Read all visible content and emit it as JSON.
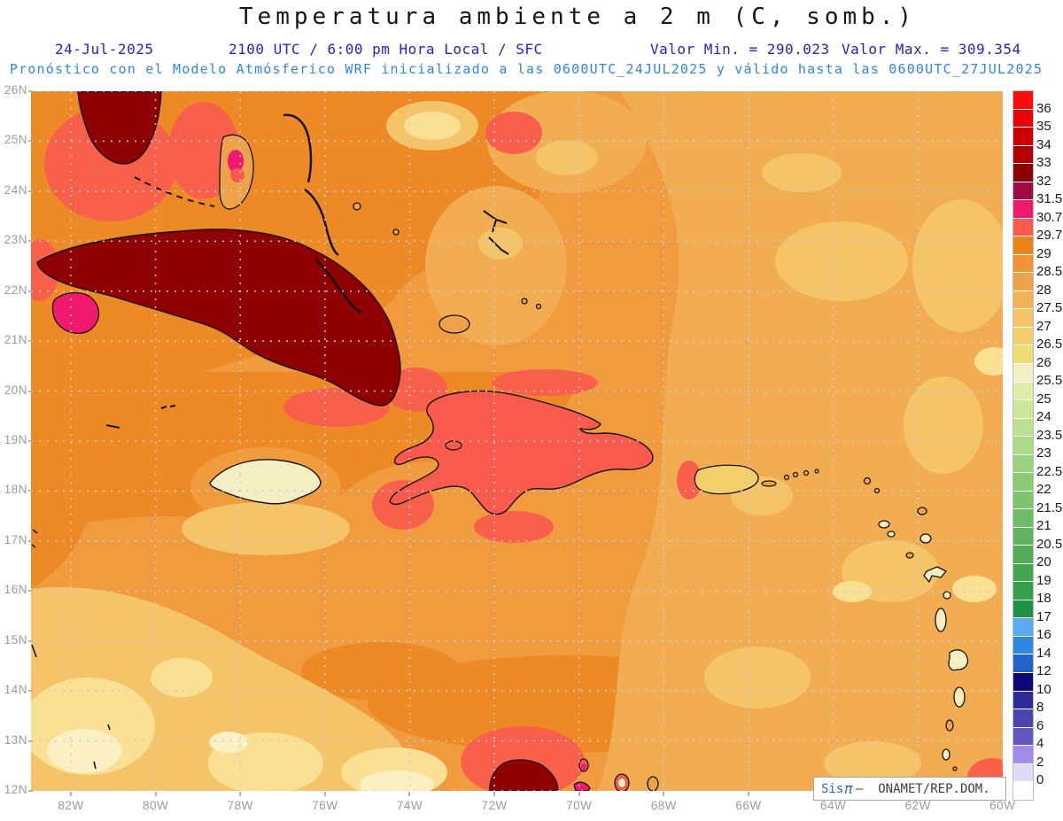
{
  "header": {
    "title": "Temperatura ambiente a 2 m (C, somb.)",
    "date": "24-Jul-2025",
    "time_info": "2100 UTC / 6:00 pm Hora Local / SFC",
    "min_label": "Valor Min. = 290.023",
    "max_label": "Valor Max. = 309.354",
    "forecast_line": "Pronóstico con el Modelo Atmósferico WRF inicializado a las 0600UTC_24JUL2025 y válido hasta las  0600UTC_27JUL2025"
  },
  "axes": {
    "lat_ticks": [
      "26N",
      "25N",
      "24N",
      "23N",
      "22N",
      "21N",
      "20N",
      "19N",
      "18N",
      "17N",
      "16N",
      "15N",
      "14N",
      "13N",
      "12N"
    ],
    "lon_ticks": [
      "82W",
      "80W",
      "78W",
      "76W",
      "74W",
      "72W",
      "70W",
      "68W",
      "66W",
      "64W",
      "62W",
      "60W"
    ]
  },
  "colorbar": {
    "labels": [
      "36",
      "35",
      "34",
      "33",
      "32",
      "31.5",
      "30.7",
      "29.7",
      "29",
      "28.5",
      "28",
      "27.5",
      "27",
      "26.5",
      "26",
      "25.5",
      "25",
      "24",
      "23.5",
      "23",
      "22.5",
      "22",
      "21.5",
      "21",
      "20.5",
      "20",
      "19",
      "18",
      "17",
      "16",
      "14",
      "12",
      "10",
      "8",
      "6",
      "4",
      "2",
      "0"
    ],
    "colors": [
      "#FB0D0D",
      "#E60306",
      "#CC0004",
      "#B00003",
      "#8D0002",
      "#9E0A41",
      "#EF1A6E",
      "#F85A4E",
      "#EA8318",
      "#F09435",
      "#F0A24A",
      "#F2B257",
      "#F5C468",
      "#F2CF6B",
      "#EFDC73",
      "#F3EFC3",
      "#DAEEA7",
      "#CAE896",
      "#BAE28C",
      "#ABDB84",
      "#9BD37C",
      "#8CCB74",
      "#7DC56D",
      "#6EBD65",
      "#5FB55D",
      "#50AD56",
      "#42A54F",
      "#34A04B",
      "#209245",
      "#5BA9EE",
      "#2F87E4",
      "#2064CA",
      "#100678",
      "#2E2B9A",
      "#4B45AE",
      "#6557C2",
      "#A28BEA",
      "#DDD9F6",
      "#FFFFFF"
    ]
  },
  "watermark": {
    "prefix": "Sis",
    "pi": "π",
    "suffix": "–  ONAMET/REP.DOM."
  }
}
